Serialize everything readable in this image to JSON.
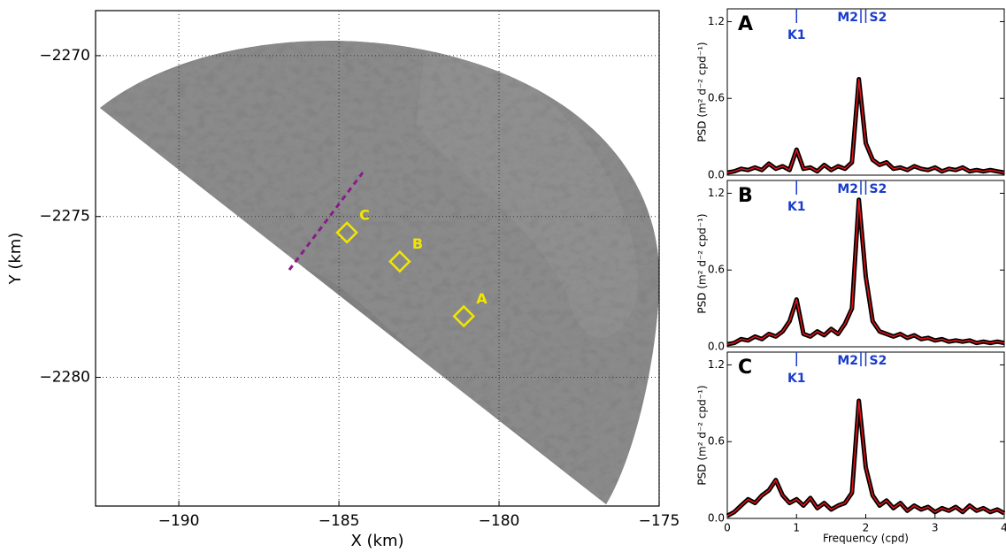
{
  "chart_data": [
    {
      "type": "image",
      "xlabel": "X (km)",
      "ylabel": "Y (km)",
      "grid": true,
      "xlim": [
        -192.6,
        -175
      ],
      "ylim": [
        -2284,
        -2268.6
      ],
      "xticks": [
        {
          "value": -190,
          "label": "−190"
        },
        {
          "value": -185,
          "label": "−185"
        },
        {
          "value": -180,
          "label": "−180"
        },
        {
          "value": -175,
          "label": "−175"
        }
      ],
      "yticks": [
        {
          "value": -2270,
          "label": "−2270"
        },
        {
          "value": -2275,
          "label": "−2275"
        },
        {
          "value": -2280,
          "label": "−2280"
        }
      ],
      "annotations": [
        {
          "label": "A",
          "x": -181.1,
          "y": -2278.1
        },
        {
          "label": "B",
          "x": -183.1,
          "y": -2276.4
        },
        {
          "label": "C",
          "x": -184.75,
          "y": -2275.5
        }
      ]
    },
    {
      "type": "line",
      "panel_label": "A",
      "ylabel": "PSD (m² d⁻² cpd⁻¹)",
      "xlim": [
        0,
        4
      ],
      "ylim": [
        0,
        1.3
      ],
      "yticks": [
        {
          "value": 0,
          "label": "0.0"
        },
        0.6,
        1.2
      ],
      "markers": [
        {
          "label": "K1",
          "x": 1.0
        },
        {
          "label": "M2",
          "x": 1.93
        },
        {
          "label": "S2",
          "x": 2.0
        }
      ],
      "x": [
        0,
        0.1,
        0.2,
        0.3,
        0.4,
        0.5,
        0.6,
        0.7,
        0.8,
        0.9,
        1.0,
        1.1,
        1.2,
        1.3,
        1.4,
        1.5,
        1.6,
        1.7,
        1.8,
        1.9,
        2.0,
        2.1,
        2.2,
        2.3,
        2.4,
        2.5,
        2.6,
        2.7,
        2.8,
        2.9,
        3.0,
        3.1,
        3.2,
        3.3,
        3.4,
        3.5,
        3.6,
        3.7,
        3.8,
        3.9,
        4.0
      ],
      "series": [
        {
          "color": "#e8141a",
          "values": [
            0.02,
            0.03,
            0.05,
            0.04,
            0.06,
            0.04,
            0.09,
            0.05,
            0.07,
            0.04,
            0.2,
            0.05,
            0.06,
            0.03,
            0.08,
            0.04,
            0.07,
            0.05,
            0.1,
            0.75,
            0.25,
            0.12,
            0.08,
            0.1,
            0.05,
            0.06,
            0.04,
            0.07,
            0.05,
            0.04,
            0.06,
            0.03,
            0.05,
            0.04,
            0.06,
            0.03,
            0.04,
            0.03,
            0.04,
            0.03,
            0.02
          ]
        }
      ]
    },
    {
      "type": "line",
      "panel_label": "B",
      "ylabel": "PSD (m² d⁻² cpd⁻¹)",
      "xlim": [
        0,
        4
      ],
      "ylim": [
        0,
        1.3
      ],
      "yticks": [
        {
          "value": 0,
          "label": "0.0"
        },
        0.6,
        1.2
      ],
      "markers": [
        {
          "label": "K1",
          "x": 1.0
        },
        {
          "label": "M2",
          "x": 1.93
        },
        {
          "label": "S2",
          "x": 2.0
        }
      ],
      "x": [
        0,
        0.1,
        0.2,
        0.3,
        0.4,
        0.5,
        0.6,
        0.7,
        0.8,
        0.9,
        1.0,
        1.1,
        1.2,
        1.3,
        1.4,
        1.5,
        1.6,
        1.7,
        1.8,
        1.9,
        2.0,
        2.1,
        2.2,
        2.3,
        2.4,
        2.5,
        2.6,
        2.7,
        2.8,
        2.9,
        3.0,
        3.1,
        3.2,
        3.3,
        3.4,
        3.5,
        3.6,
        3.7,
        3.8,
        3.9,
        4.0
      ],
      "series": [
        {
          "color": "#e8141a",
          "values": [
            0.02,
            0.03,
            0.06,
            0.05,
            0.08,
            0.06,
            0.1,
            0.08,
            0.12,
            0.2,
            0.37,
            0.1,
            0.08,
            0.12,
            0.09,
            0.14,
            0.1,
            0.18,
            0.3,
            1.15,
            0.55,
            0.2,
            0.12,
            0.1,
            0.08,
            0.1,
            0.07,
            0.09,
            0.06,
            0.07,
            0.05,
            0.06,
            0.04,
            0.05,
            0.04,
            0.05,
            0.03,
            0.04,
            0.03,
            0.04,
            0.03
          ]
        }
      ]
    },
    {
      "type": "line",
      "panel_label": "C",
      "ylabel": "PSD (m² d⁻² cpd⁻¹)",
      "xlabel": "Frequency (cpd)",
      "xlim": [
        0,
        4
      ],
      "ylim": [
        0,
        1.3
      ],
      "xticks": [
        0,
        1,
        2,
        3,
        4
      ],
      "yticks": [
        {
          "value": 0,
          "label": "0.0"
        },
        0.6,
        1.2
      ],
      "markers": [
        {
          "label": "K1",
          "x": 1.0
        },
        {
          "label": "M2",
          "x": 1.93
        },
        {
          "label": "S2",
          "x": 2.0
        }
      ],
      "x": [
        0,
        0.1,
        0.2,
        0.3,
        0.4,
        0.5,
        0.6,
        0.7,
        0.8,
        0.9,
        1.0,
        1.1,
        1.2,
        1.3,
        1.4,
        1.5,
        1.6,
        1.7,
        1.8,
        1.9,
        2.0,
        2.1,
        2.2,
        2.3,
        2.4,
        2.5,
        2.6,
        2.7,
        2.8,
        2.9,
        3.0,
        3.1,
        3.2,
        3.3,
        3.4,
        3.5,
        3.6,
        3.7,
        3.8,
        3.9,
        4.0
      ],
      "series": [
        {
          "color": "#e8141a",
          "values": [
            0.02,
            0.05,
            0.1,
            0.15,
            0.12,
            0.18,
            0.22,
            0.3,
            0.18,
            0.12,
            0.15,
            0.1,
            0.16,
            0.08,
            0.12,
            0.07,
            0.1,
            0.12,
            0.2,
            0.92,
            0.4,
            0.18,
            0.1,
            0.14,
            0.08,
            0.12,
            0.06,
            0.1,
            0.07,
            0.09,
            0.05,
            0.08,
            0.06,
            0.09,
            0.05,
            0.1,
            0.06,
            0.08,
            0.05,
            0.07,
            0.04
          ]
        }
      ]
    }
  ]
}
